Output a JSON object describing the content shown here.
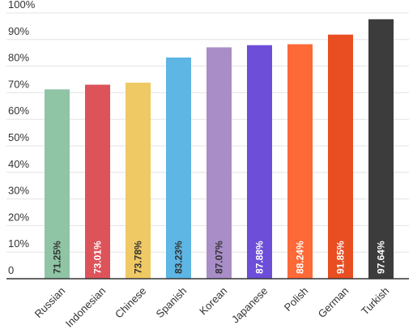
{
  "chart_data": {
    "type": "bar",
    "categories": [
      "Russian",
      "Indonesian",
      "Chinese",
      "Spanish",
      "Korean",
      "Japanese",
      "Polish",
      "German",
      "Turkish"
    ],
    "values": [
      71.25,
      73.01,
      73.78,
      83.23,
      87.07,
      87.88,
      88.24,
      91.85,
      97.64
    ],
    "value_labels": [
      "71.25%",
      "73.01%",
      "73.78%",
      "83.23%",
      "87.07%",
      "87.88%",
      "88.24%",
      "91.85%",
      "97.64%"
    ],
    "colors": [
      "#8fc4a4",
      "#dd535a",
      "#efc964",
      "#5db6e4",
      "#a88dc6",
      "#6c4ed9",
      "#fd6937",
      "#e94e22",
      "#3c3c3c"
    ],
    "value_label_colors": [
      "#333333",
      "#ffffff",
      "#333333",
      "#333333",
      "#333333",
      "#ffffff",
      "#ffffff",
      "#ffffff",
      "#ffffff"
    ],
    "ylim": [
      0,
      100
    ],
    "yticks": [
      0,
      10,
      20,
      30,
      40,
      50,
      60,
      70,
      80,
      90,
      100
    ],
    "ytick_labels": [
      "0",
      "10%",
      "20%",
      "30%",
      "40%",
      "50%",
      "60%",
      "70%",
      "80%",
      "90%",
      "100%"
    ],
    "title": "",
    "xlabel": "",
    "ylabel": "",
    "grid": true,
    "legend": "none"
  }
}
